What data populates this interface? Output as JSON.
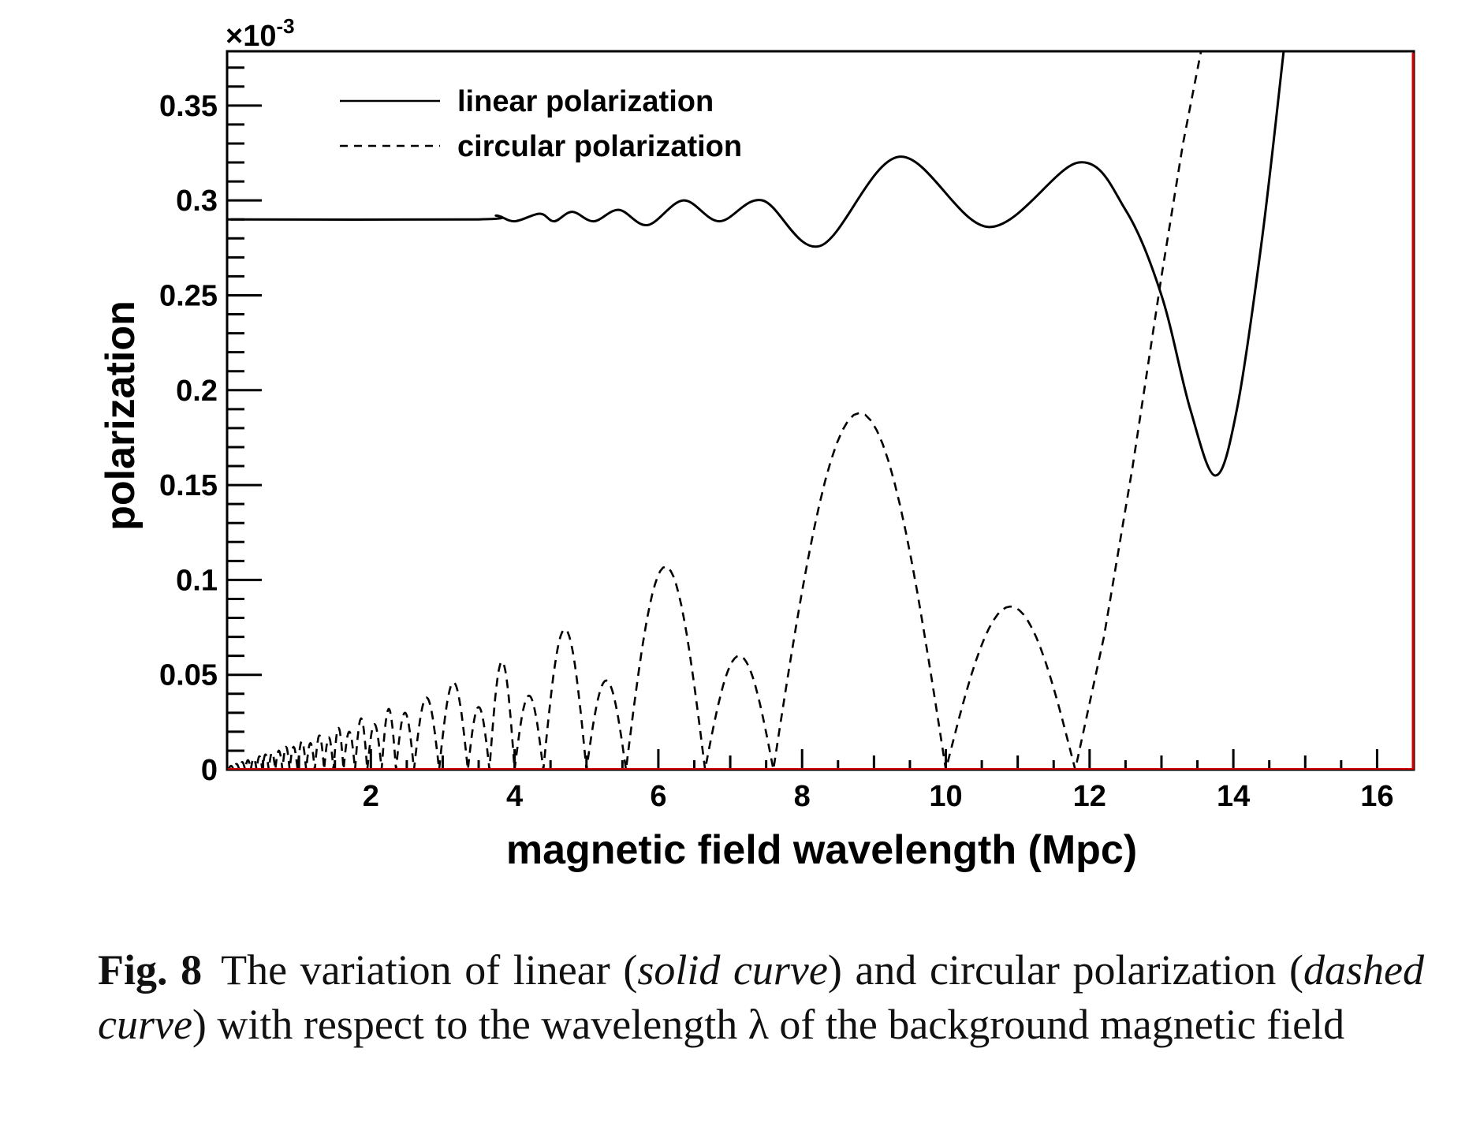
{
  "chart_data": {
    "type": "line",
    "xlabel": "magnetic field wavelength (Mpc)",
    "ylabel": "polarization",
    "y_multiplier": "×10",
    "y_multiplier_exp": "-3",
    "xlim": [
      0,
      16.5
    ],
    "ylim": [
      0,
      0.3786
    ],
    "xticks": [
      2,
      4,
      6,
      8,
      10,
      12,
      14,
      16
    ],
    "xtick_labels": [
      "2",
      "4",
      "6",
      "8",
      "10",
      "12",
      "14",
      "16"
    ],
    "yticks": [
      0,
      0.05,
      0.1,
      0.15,
      0.2,
      0.25,
      0.3,
      0.35
    ],
    "ytick_labels": [
      "0",
      "0.05",
      "0.1",
      "0.15",
      "0.2",
      "0.25",
      "0.3",
      "0.35"
    ],
    "grid": false,
    "legend_position": "top-left",
    "series": [
      {
        "name": "linear polarization",
        "style": "solid",
        "points": [
          [
            0.05,
            0.29
          ],
          [
            3.5,
            0.29
          ],
          [
            3.75,
            0.292
          ],
          [
            4.0,
            0.289
          ],
          [
            4.35,
            0.293
          ],
          [
            4.55,
            0.289
          ],
          [
            4.8,
            0.294
          ],
          [
            5.1,
            0.289
          ],
          [
            5.45,
            0.295
          ],
          [
            5.85,
            0.287
          ],
          [
            6.35,
            0.3
          ],
          [
            6.85,
            0.289
          ],
          [
            7.45,
            0.3
          ],
          [
            8.25,
            0.276
          ],
          [
            9.35,
            0.323
          ],
          [
            10.6,
            0.286
          ],
          [
            11.85,
            0.32
          ],
          [
            12.5,
            0.295
          ],
          [
            13.0,
            0.25
          ],
          [
            13.4,
            0.19
          ],
          [
            13.75,
            0.155
          ],
          [
            14.05,
            0.19
          ],
          [
            14.4,
            0.28
          ],
          [
            14.7,
            0.3786
          ]
        ]
      },
      {
        "name": "circular polarization",
        "style": "dashed",
        "lobes": [
          [
            0.02,
            0.09,
            0.002
          ],
          [
            0.09,
            0.17,
            0.003
          ],
          [
            0.17,
            0.25,
            0.004
          ],
          [
            0.25,
            0.33,
            0.005
          ],
          [
            0.33,
            0.41,
            0.006
          ],
          [
            0.41,
            0.49,
            0.007
          ],
          [
            0.49,
            0.58,
            0.008
          ],
          [
            0.58,
            0.67,
            0.009
          ],
          [
            0.67,
            0.77,
            0.01
          ],
          [
            0.77,
            0.87,
            0.012
          ],
          [
            0.87,
            0.98,
            0.012
          ],
          [
            0.98,
            1.1,
            0.015
          ],
          [
            1.1,
            1.22,
            0.014
          ],
          [
            1.22,
            1.35,
            0.018
          ],
          [
            1.35,
            1.48,
            0.017
          ],
          [
            1.48,
            1.62,
            0.022
          ],
          [
            1.62,
            1.78,
            0.02
          ],
          [
            1.78,
            1.95,
            0.027
          ],
          [
            1.95,
            2.15,
            0.024
          ],
          [
            2.15,
            2.35,
            0.032
          ],
          [
            2.35,
            2.6,
            0.03
          ],
          [
            2.6,
            2.95,
            0.038
          ],
          [
            2.95,
            3.35,
            0.046
          ],
          [
            3.35,
            3.65,
            0.033
          ],
          [
            3.65,
            4.0,
            0.057
          ],
          [
            4.0,
            4.4,
            0.039
          ],
          [
            4.4,
            5.0,
            0.074
          ],
          [
            5.0,
            5.55,
            0.047
          ],
          [
            5.55,
            6.65,
            0.107
          ],
          [
            6.65,
            7.6,
            0.06
          ],
          [
            7.6,
            10.0,
            0.188
          ],
          [
            10.0,
            11.8,
            0.086
          ]
        ],
        "rising": [
          [
            11.8,
            0
          ],
          [
            12.2,
            0.07
          ],
          [
            12.6,
            0.16
          ],
          [
            13.0,
            0.26
          ],
          [
            13.3,
            0.33
          ],
          [
            13.55,
            0.3786
          ]
        ]
      }
    ]
  },
  "colors": {
    "axis": "#000000",
    "frame_edge": "#d40000",
    "curve": "#000000"
  },
  "caption": {
    "label": "Fig. 8",
    "t1": "The variation of linear (",
    "i1": "solid curve",
    "t2": ") and circular polarization (",
    "i2": "dashed curve",
    "t3": ") with respect to the wavelength λ of the background magnetic field"
  }
}
